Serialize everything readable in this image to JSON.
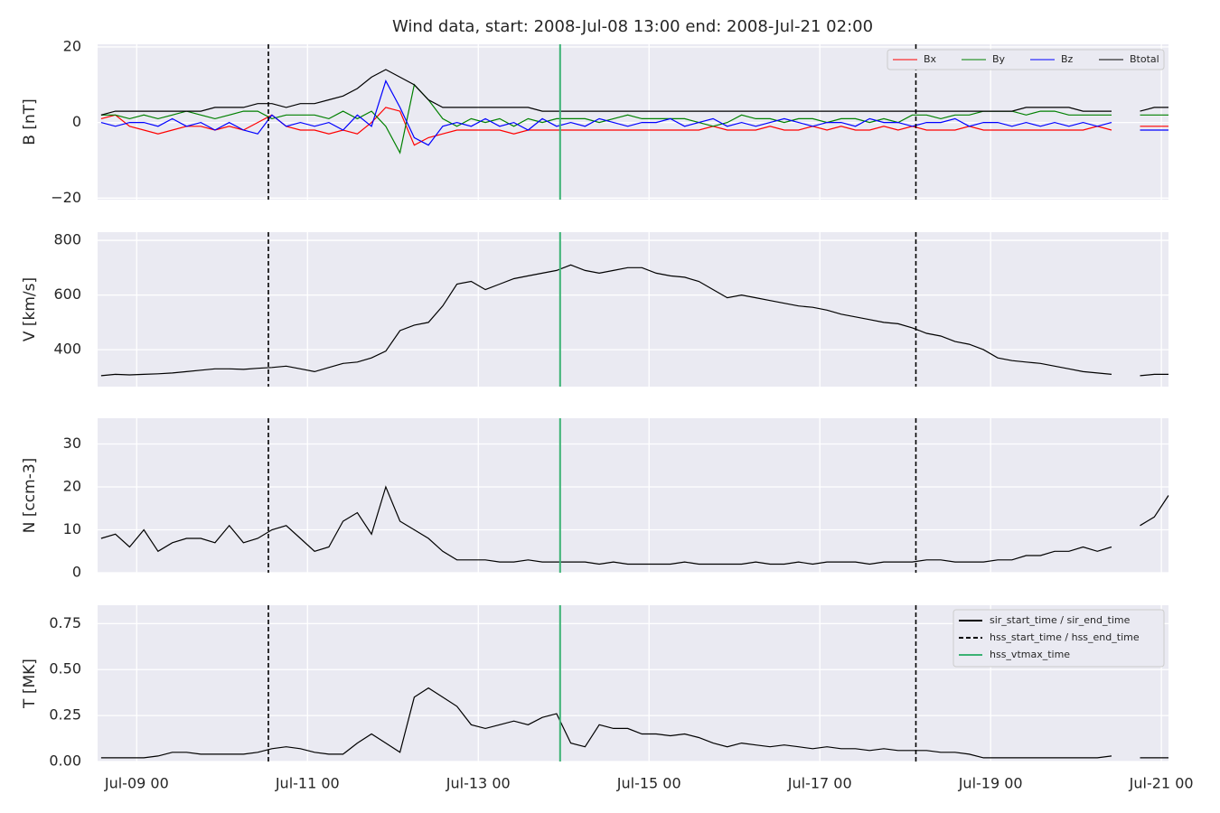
{
  "chart_data": [
    {
      "type": "line",
      "title": "Wind data, start: 2008-Jul-08 13:00  end: 2008-Jul-21 02:00",
      "ylabel": "B [nT]",
      "x": [
        "Jul-08 14",
        "Jul-08 18",
        "Jul-08 22",
        "Jul-09 02",
        "Jul-09 06",
        "Jul-09 10",
        "Jul-09 14",
        "Jul-09 18",
        "Jul-09 22",
        "Jul-10 02",
        "Jul-10 06",
        "Jul-10 10",
        "Jul-10 14",
        "Jul-10 18",
        "Jul-10 22",
        "Jul-11 02",
        "Jul-11 06",
        "Jul-11 10",
        "Jul-11 14",
        "Jul-11 18",
        "Jul-11 22",
        "Jul-12 02",
        "Jul-12 06",
        "Jul-12 10",
        "Jul-12 14",
        "Jul-12 18",
        "Jul-12 22",
        "Jul-13 02",
        "Jul-13 06",
        "Jul-13 10",
        "Jul-13 14",
        "Jul-13 18",
        "Jul-13 22",
        "Jul-14 02",
        "Jul-14 06",
        "Jul-14 10",
        "Jul-14 14",
        "Jul-14 18",
        "Jul-14 22",
        "Jul-15 02",
        "Jul-15 06",
        "Jul-15 10",
        "Jul-15 14",
        "Jul-15 18",
        "Jul-15 22",
        "Jul-16 02",
        "Jul-16 06",
        "Jul-16 10",
        "Jul-16 14",
        "Jul-16 18",
        "Jul-16 22",
        "Jul-17 02",
        "Jul-17 06",
        "Jul-17 10",
        "Jul-17 14",
        "Jul-17 18",
        "Jul-17 22",
        "Jul-18 02",
        "Jul-18 06",
        "Jul-18 10",
        "Jul-18 14",
        "Jul-18 18",
        "Jul-18 22",
        "Jul-19 02",
        "Jul-19 06",
        "Jul-19 10",
        "Jul-19 14",
        "Jul-19 18",
        "Jul-19 22",
        "Jul-20 02",
        "Jul-20 06",
        "Jul-20 10",
        "Jul-20 14",
        "Jul-20 18",
        "Jul-20 22",
        "Jul-21 02"
      ],
      "xlim": [
        "Jul-08 13",
        "Jul-21 02"
      ],
      "ylim": [
        -20.4,
        20.7
      ],
      "yticks": [
        {
          "value": -20,
          "label": "−20"
        },
        0,
        20
      ],
      "grid": true,
      "legend": "upper right",
      "series": [
        {
          "name": "Bx",
          "color": "#ff0000",
          "values": [
            1,
            2,
            -1,
            -2,
            -3,
            -2,
            -1,
            -1,
            -2,
            -1,
            -2,
            0,
            2,
            -1,
            -2,
            -2,
            -3,
            -2,
            -3,
            0,
            4,
            3,
            -6,
            -4,
            -3,
            -2,
            -2,
            -2,
            -2,
            -3,
            -2,
            -2,
            -2,
            -2,
            -2,
            -2,
            -2,
            -2,
            -2,
            -2,
            -2,
            -2,
            -2,
            -1,
            -2,
            -2,
            -2,
            -1,
            -2,
            -2,
            -1,
            -2,
            -1,
            -2,
            -2,
            -1,
            -2,
            -1,
            -2,
            -2,
            -2,
            -1,
            -2,
            -2,
            -2,
            -2,
            -2,
            -2,
            -2,
            -2,
            -1,
            -2,
            null,
            -1,
            -1,
            -1
          ]
        },
        {
          "name": "By",
          "color": "#008000",
          "values": [
            2,
            2,
            1,
            2,
            1,
            2,
            3,
            2,
            1,
            2,
            3,
            3,
            1,
            2,
            2,
            2,
            1,
            3,
            1,
            3,
            -1,
            -8,
            10,
            6,
            1,
            -1,
            1,
            0,
            1,
            -1,
            1,
            0,
            1,
            1,
            1,
            0,
            1,
            2,
            1,
            1,
            1,
            1,
            0,
            -1,
            0,
            2,
            1,
            1,
            0,
            1,
            1,
            0,
            1,
            1,
            0,
            1,
            0,
            2,
            2,
            1,
            2,
            2,
            3,
            3,
            3,
            2,
            3,
            3,
            2,
            2,
            2,
            2,
            null,
            2,
            2,
            2
          ]
        },
        {
          "name": "Bz",
          "color": "#0000ff",
          "values": [
            0,
            -1,
            0,
            0,
            -1,
            1,
            -1,
            0,
            -2,
            0,
            -2,
            -3,
            2,
            -1,
            0,
            -1,
            0,
            -2,
            2,
            -1,
            11,
            4,
            -4,
            -6,
            -1,
            0,
            -1,
            1,
            -1,
            0,
            -2,
            1,
            -1,
            0,
            -1,
            1,
            0,
            -1,
            0,
            0,
            1,
            -1,
            0,
            1,
            -1,
            0,
            -1,
            0,
            1,
            0,
            -1,
            0,
            0,
            -1,
            1,
            0,
            0,
            -1,
            0,
            0,
            1,
            -1,
            0,
            0,
            -1,
            0,
            -1,
            0,
            -1,
            0,
            -1,
            0,
            null,
            -2,
            -2,
            -2
          ]
        },
        {
          "name": "Btotal",
          "color": "#000000",
          "values": [
            2,
            3,
            3,
            3,
            3,
            3,
            3,
            3,
            4,
            4,
            4,
            5,
            5,
            4,
            5,
            5,
            6,
            7,
            9,
            12,
            14,
            12,
            10,
            6,
            4,
            4,
            4,
            4,
            4,
            4,
            4,
            3,
            3,
            3,
            3,
            3,
            3,
            3,
            3,
            3,
            3,
            3,
            3,
            3,
            3,
            3,
            3,
            3,
            3,
            3,
            3,
            3,
            3,
            3,
            3,
            3,
            3,
            3,
            3,
            3,
            3,
            3,
            3,
            3,
            3,
            4,
            4,
            4,
            4,
            3,
            3,
            3,
            null,
            3,
            4,
            4
          ]
        }
      ]
    },
    {
      "type": "line",
      "ylabel": "V [km/s]",
      "xlim": [
        "Jul-08 13",
        "Jul-21 02"
      ],
      "ylim": [
        265,
        830
      ],
      "yticks": [
        400,
        600,
        800
      ],
      "grid": true,
      "series": [
        {
          "color": "#000000",
          "values": [
            305,
            310,
            308,
            310,
            312,
            315,
            320,
            325,
            330,
            330,
            328,
            332,
            335,
            340,
            330,
            320,
            335,
            350,
            355,
            370,
            395,
            470,
            490,
            500,
            560,
            640,
            650,
            620,
            640,
            660,
            670,
            680,
            690,
            710,
            690,
            680,
            690,
            700,
            700,
            680,
            670,
            665,
            650,
            620,
            590,
            600,
            590,
            580,
            570,
            560,
            555,
            545,
            530,
            520,
            510,
            500,
            495,
            480,
            460,
            450,
            430,
            420,
            400,
            370,
            360,
            355,
            350,
            340,
            330,
            320,
            315,
            310,
            null,
            305,
            310,
            310
          ]
        }
      ]
    },
    {
      "type": "line",
      "ylabel": "N [ccm-3]",
      "xlim": [
        "Jul-08 13",
        "Jul-21 02"
      ],
      "ylim": [
        0,
        36
      ],
      "yticks": [
        0,
        10,
        20,
        30
      ],
      "grid": true,
      "series": [
        {
          "color": "#000000",
          "values": [
            8,
            9,
            6,
            10,
            5,
            7,
            8,
            8,
            7,
            11,
            7,
            8,
            10,
            11,
            8,
            5,
            6,
            12,
            14,
            9,
            20,
            12,
            10,
            8,
            5,
            3,
            3,
            3,
            2.5,
            2.5,
            3,
            2.5,
            2.5,
            2.5,
            2.5,
            2,
            2.5,
            2,
            2,
            2,
            2,
            2.5,
            2,
            2,
            2,
            2,
            2.5,
            2,
            2,
            2.5,
            2,
            2.5,
            2.5,
            2.5,
            2,
            2.5,
            2.5,
            2.5,
            3,
            3,
            2.5,
            2.5,
            2.5,
            3,
            3,
            4,
            4,
            5,
            5,
            6,
            5,
            6,
            null,
            11,
            13,
            18
          ]
        }
      ]
    },
    {
      "type": "line",
      "ylabel": "T [MK]",
      "xlim": [
        "Jul-08 13",
        "Jul-21 02"
      ],
      "ylim": [
        0,
        0.85
      ],
      "yticks": [
        {
          "value": 0,
          "label": "0.00"
        },
        {
          "value": 0.25,
          "label": "0.25"
        },
        {
          "value": 0.5,
          "label": "0.50"
        },
        {
          "value": 0.75,
          "label": "0.75"
        }
      ],
      "xticks": [
        "Jul-09 00",
        "Jul-11 00",
        "Jul-13 00",
        "Jul-15 00",
        "Jul-17 00",
        "Jul-19 00",
        "Jul-21 00"
      ],
      "grid": true,
      "legend": "upper right",
      "series": [
        {
          "color": "#000000",
          "values": [
            0.02,
            0.02,
            0.02,
            0.02,
            0.03,
            0.05,
            0.05,
            0.04,
            0.04,
            0.04,
            0.04,
            0.05,
            0.07,
            0.08,
            0.07,
            0.05,
            0.04,
            0.04,
            0.1,
            0.15,
            0.1,
            0.05,
            0.35,
            0.4,
            0.35,
            0.3,
            0.2,
            0.18,
            0.2,
            0.22,
            0.2,
            0.24,
            0.26,
            0.1,
            0.08,
            0.2,
            0.18,
            0.18,
            0.15,
            0.15,
            0.14,
            0.15,
            0.13,
            0.1,
            0.08,
            0.1,
            0.09,
            0.08,
            0.09,
            0.08,
            0.07,
            0.08,
            0.07,
            0.07,
            0.06,
            0.07,
            0.06,
            0.06,
            0.06,
            0.05,
            0.05,
            0.04,
            0.02,
            0.02,
            0.02,
            0.02,
            0.02,
            0.02,
            0.02,
            0.02,
            0.02,
            0.03,
            null,
            0.02,
            0.02,
            0.02
          ]
        }
      ],
      "markers": [
        {
          "name": "sir_start_time / sir_end_time",
          "color": "#000000",
          "dash": false,
          "x": []
        },
        {
          "name": "hss_start_time / hss_end_time",
          "color": "#000000",
          "dash": true,
          "x": [
            "Jul-10 13",
            "Jul-18 03"
          ]
        },
        {
          "name": "hss_vtmax_time",
          "color": "#3bb273",
          "dash": false,
          "x": [
            "Jul-13 23"
          ]
        }
      ]
    }
  ]
}
